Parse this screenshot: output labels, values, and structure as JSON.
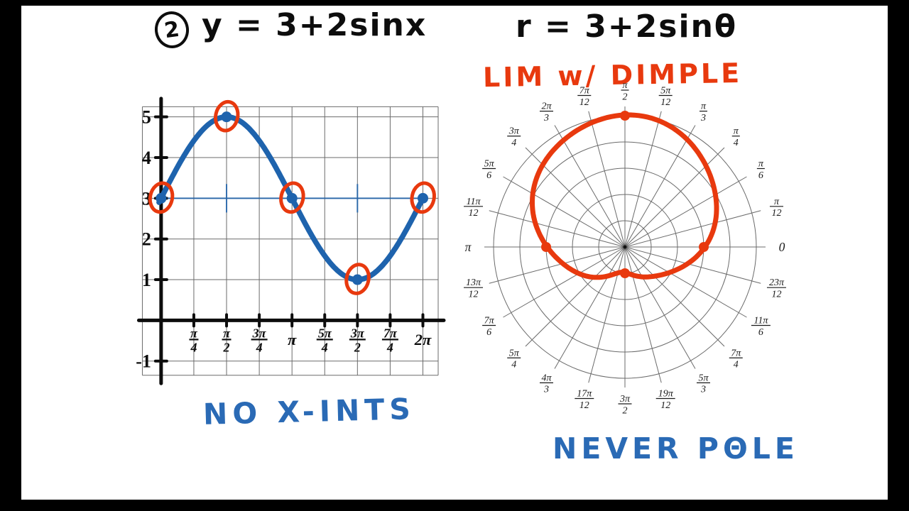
{
  "palette": {
    "background": "#000000",
    "board": "#ffffff",
    "ink": "#0d0d0d",
    "handwriting_blue": "#2a6ab5",
    "curve_blue": "#1e63ad",
    "highlight_orange": "#e8390e",
    "grid_gray": "#6b6b6b"
  },
  "left_panel": {
    "problem_number": "2",
    "equation": "y = 3+2sinx",
    "note": "NO X-INTS"
  },
  "right_panel": {
    "equation": "r = 3+2sinθ",
    "classification_label": "LIM w/ DIMPLE",
    "note": "NEVER PΘLE"
  },
  "chart_data": [
    {
      "type": "line",
      "title": "y = 3 + 2 sin x",
      "function": "y = 3 + 2*sin(x)",
      "x_tick_labels": [
        "π/4",
        "π/2",
        "3π/4",
        "π",
        "5π/4",
        "3π/2",
        "7π/4",
        "2π"
      ],
      "x_tick_values_in_pi": [
        0.25,
        0.5,
        0.75,
        1.0,
        1.25,
        1.5,
        1.75,
        2.0
      ],
      "y_tick_labels": [
        "5",
        "4",
        "3",
        "2",
        "1",
        "-1"
      ],
      "y_tick_values": [
        5,
        4,
        3,
        2,
        1,
        -1
      ],
      "xlim_in_pi": [
        -0.2,
        2.35
      ],
      "ylim": [
        -1.65,
        5.5
      ],
      "midline_y": 3,
      "amplitude": 2,
      "vertical_shift": 3,
      "key_points_in_pi": [
        [
          0,
          3
        ],
        [
          0.5,
          5
        ],
        [
          1,
          3
        ],
        [
          1.5,
          1
        ],
        [
          2,
          3
        ]
      ],
      "midline_dashes_in_pi": [
        0.5,
        1.5
      ],
      "grid": true,
      "curve_color": "#1e63ad",
      "highlight_color": "#e8390e",
      "axis_color": "#0d0d0d",
      "grid_color": "#6b6b6b"
    },
    {
      "type": "polar",
      "title": "r = 3 + 2 sin θ",
      "function": "r = 3 + 2*sin(θ)",
      "r_max": 5,
      "r_circles": [
        1,
        2,
        3,
        4,
        5
      ],
      "spoke_step_deg": 15,
      "angle_labels": [
        "0",
        "π/12",
        "π/6",
        "π/4",
        "π/3",
        "5π/12",
        "π/2",
        "7π/12",
        "2π/3",
        "3π/4",
        "5π/6",
        "11π/12",
        "π",
        "13π/12",
        "7π/6",
        "5π/4",
        "4π/3",
        "17π/12",
        "3π/2",
        "19π/12",
        "5π/3",
        "7π/4",
        "11π/6",
        "23π/12"
      ],
      "key_points": [
        {
          "theta_deg": 0,
          "r": 3
        },
        {
          "theta_deg": 90,
          "r": 5
        },
        {
          "theta_deg": 180,
          "r": 3
        },
        {
          "theta_deg": 270,
          "r": 1
        }
      ],
      "classification": "limacon with dimple",
      "curve_color": "#e8390e",
      "grid_color": "#6b6b6b",
      "label_color": "#1a1a1a"
    }
  ]
}
